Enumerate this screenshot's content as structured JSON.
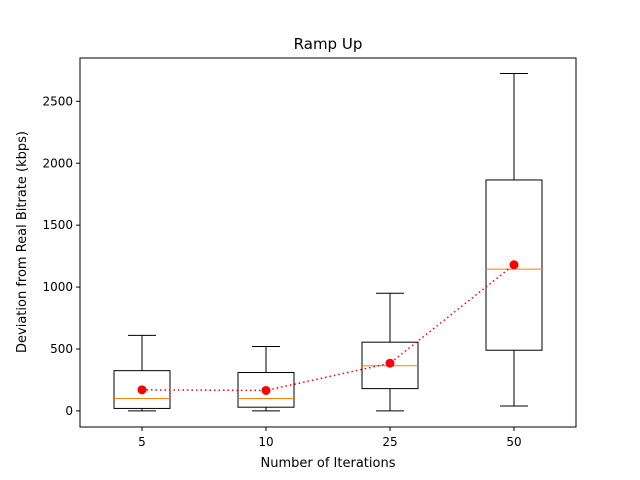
{
  "chart_data": {
    "type": "box",
    "title": "Ramp Up",
    "xlabel": "Number of Iterations",
    "ylabel": "Deviation from Real Bitrate (kbps)",
    "categories": [
      "5",
      "10",
      "25",
      "50"
    ],
    "ylim": [
      -130,
      2850
    ],
    "yticks": [
      0,
      500,
      1000,
      1500,
      2000,
      2500
    ],
    "grid": false,
    "boxes": [
      {
        "category": "5",
        "whisker_low": 0,
        "q1": 20,
        "median": 100,
        "q3": 325,
        "whisker_high": 610
      },
      {
        "category": "10",
        "whisker_low": 0,
        "q1": 30,
        "median": 100,
        "q3": 310,
        "whisker_high": 520
      },
      {
        "category": "25",
        "whisker_low": 0,
        "q1": 180,
        "median": 365,
        "q3": 555,
        "whisker_high": 950
      },
      {
        "category": "50",
        "whisker_low": 40,
        "q1": 490,
        "median": 1145,
        "q3": 1865,
        "whisker_high": 2725
      }
    ],
    "mean_series": {
      "values": [
        170,
        165,
        385,
        1180
      ],
      "color": "#ff0000",
      "line_style": "dotted"
    },
    "colors": {
      "box": "#000000",
      "median": "#ff7f0e",
      "mean": "#ff0000"
    }
  }
}
